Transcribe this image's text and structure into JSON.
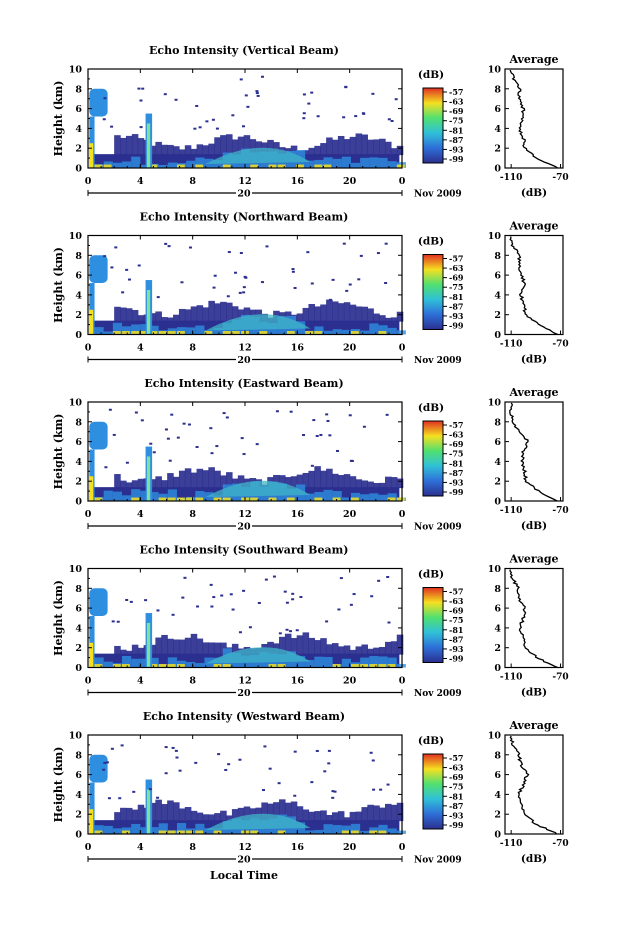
{
  "figure": {
    "x_label": "Local Time",
    "date_label": "Nov 2009",
    "date_day": "20",
    "y_label": "Height (km)",
    "colorbar_unit": "(dB)",
    "colorbar_ticks": [
      "-57",
      "-63",
      "-69",
      "-75",
      "-81",
      "-87",
      "-93",
      "-99"
    ],
    "avg_title": "Average",
    "avg_xlabel": "(dB)",
    "avg_xticks": [
      "-110",
      "-70"
    ]
  },
  "colors": {
    "background_empty": "#ffffff",
    "low_echo": "#2b2f8f",
    "mid_echo": "#2e8fe0",
    "high_echo": "#f5e020",
    "max_echo": "#e03020"
  },
  "chart_data": [
    {
      "type": "heatmap",
      "title": "Echo Intensity (Vertical Beam)",
      "xlabel": "Local Time",
      "ylabel": "Height (km)",
      "xticks": [
        "0",
        "4",
        "8",
        "12",
        "16",
        "20",
        "0"
      ],
      "yticks": [
        "0",
        "2",
        "4",
        "6",
        "8",
        "10"
      ],
      "xlim": [
        0,
        24
      ],
      "ylim": [
        0,
        10
      ],
      "zlim": [
        -99,
        -57
      ],
      "zunit": "dB",
      "avg_profile": {
        "title": "Average",
        "xlabel": "(dB)",
        "xlim": [
          -115,
          -68
        ],
        "xticks": [
          "-110",
          "-70"
        ],
        "heights": [
          0,
          1,
          2,
          3,
          4,
          5,
          6,
          7,
          8,
          9,
          10
        ],
        "values": [
          -72,
          -90,
          -99,
          -100,
          -104,
          -101,
          -100,
          -104,
          -103,
          -108,
          -110
        ]
      }
    },
    {
      "type": "heatmap",
      "title": "Echo Intensity (Northward Beam)",
      "xlabel": "Local Time",
      "ylabel": "Height (km)",
      "xticks": [
        "0",
        "4",
        "8",
        "12",
        "16",
        "20",
        "0"
      ],
      "yticks": [
        "0",
        "2",
        "4",
        "6",
        "8",
        "10"
      ],
      "xlim": [
        0,
        24
      ],
      "ylim": [
        0,
        10
      ],
      "zlim": [
        -99,
        -57
      ],
      "zunit": "dB",
      "avg_profile": {
        "title": "Average",
        "xlabel": "(dB)",
        "xlim": [
          -115,
          -68
        ],
        "xticks": [
          "-110",
          "-70"
        ],
        "heights": [
          0,
          1,
          2,
          3,
          4,
          5,
          6,
          7,
          8,
          9,
          10
        ],
        "values": [
          -72,
          -88,
          -98,
          -100,
          -102,
          -99,
          -101,
          -104,
          -103,
          -109,
          -110
        ]
      }
    },
    {
      "type": "heatmap",
      "title": "Echo Intensity (Eastward Beam)",
      "xlabel": "Local Time",
      "ylabel": "Height (km)",
      "xticks": [
        "0",
        "4",
        "8",
        "12",
        "16",
        "20",
        "0"
      ],
      "yticks": [
        "0",
        "2",
        "4",
        "6",
        "8",
        "10"
      ],
      "xlim": [
        0,
        24
      ],
      "ylim": [
        0,
        10
      ],
      "zlim": [
        -99,
        -57
      ],
      "zunit": "dB",
      "avg_profile": {
        "title": "Average",
        "xlabel": "(dB)",
        "xlim": [
          -115,
          -68
        ],
        "xticks": [
          "-110",
          "-70"
        ],
        "heights": [
          0,
          1,
          2,
          3,
          4,
          5,
          6,
          7,
          8,
          9,
          10
        ],
        "values": [
          -73,
          -88,
          -98,
          -99,
          -101,
          -100,
          -96,
          -104,
          -108,
          -110,
          -110
        ]
      }
    },
    {
      "type": "heatmap",
      "title": "Echo Intensity (Southward Beam)",
      "xlabel": "Local Time",
      "ylabel": "Height (km)",
      "xticks": [
        "0",
        "4",
        "8",
        "12",
        "16",
        "20",
        "0"
      ],
      "yticks": [
        "0",
        "2",
        "4",
        "6",
        "8",
        "10"
      ],
      "xlim": [
        0,
        24
      ],
      "ylim": [
        0,
        10
      ],
      "zlim": [
        -99,
        -57
      ],
      "zunit": "dB",
      "avg_profile": {
        "title": "Average",
        "xlabel": "(dB)",
        "xlim": [
          -115,
          -68
        ],
        "xticks": [
          "-110",
          "-70"
        ],
        "heights": [
          0,
          1,
          2,
          3,
          4,
          5,
          6,
          7,
          8,
          9,
          10
        ],
        "values": [
          -73,
          -89,
          -99,
          -100,
          -103,
          -100,
          -99,
          -104,
          -104,
          -109,
          -110
        ]
      }
    },
    {
      "type": "heatmap",
      "title": "Echo Intensity (Westward Beam)",
      "xlabel": "Local Time",
      "ylabel": "Height (km)",
      "xticks": [
        "0",
        "4",
        "8",
        "12",
        "16",
        "20",
        "0"
      ],
      "yticks": [
        "0",
        "2",
        "4",
        "6",
        "8",
        "10"
      ],
      "xlim": [
        0,
        24
      ],
      "ylim": [
        0,
        10
      ],
      "zlim": [
        -99,
        -57
      ],
      "zunit": "dB",
      "avg_profile": {
        "title": "Average",
        "xlabel": "(dB)",
        "xlim": [
          -115,
          -68
        ],
        "xticks": [
          "-110",
          "-70"
        ],
        "heights": [
          0,
          1,
          2,
          3,
          4,
          5,
          6,
          7,
          8,
          9,
          10
        ],
        "values": [
          -72,
          -90,
          -99,
          -101,
          -104,
          -100,
          -97,
          -102,
          -104,
          -109,
          -110
        ]
      }
    }
  ]
}
